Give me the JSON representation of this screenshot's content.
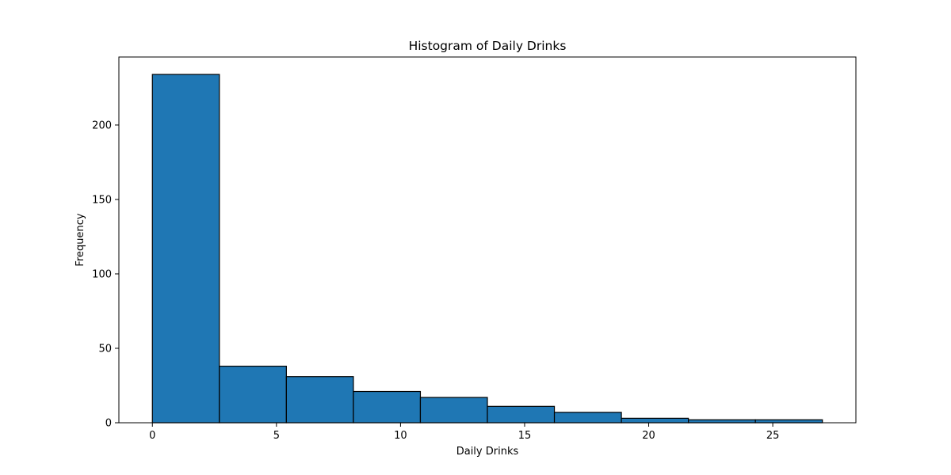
{
  "chart_data": {
    "type": "bar",
    "title": "Histogram of Daily Drinks",
    "xlabel": "Daily Drinks",
    "ylabel": "Frequency",
    "bin_edges": [
      0,
      2.7,
      5.4,
      8.1,
      10.8,
      13.5,
      16.2,
      18.9,
      21.6,
      24.3,
      27.0
    ],
    "values": [
      234,
      38,
      31,
      21,
      17,
      11,
      7,
      3,
      2,
      2
    ],
    "xlim": [
      -1.35,
      28.35
    ],
    "ylim": [
      0,
      245.7
    ],
    "xticks": [
      0,
      5,
      10,
      15,
      20,
      25
    ],
    "yticks": [
      0,
      50,
      100,
      150,
      200
    ],
    "grid": false,
    "legend": "none",
    "colors": {
      "bar_fill": "#1f77b4",
      "bar_edge": "#000000",
      "axis": "#000000",
      "background": "#ffffff"
    }
  }
}
